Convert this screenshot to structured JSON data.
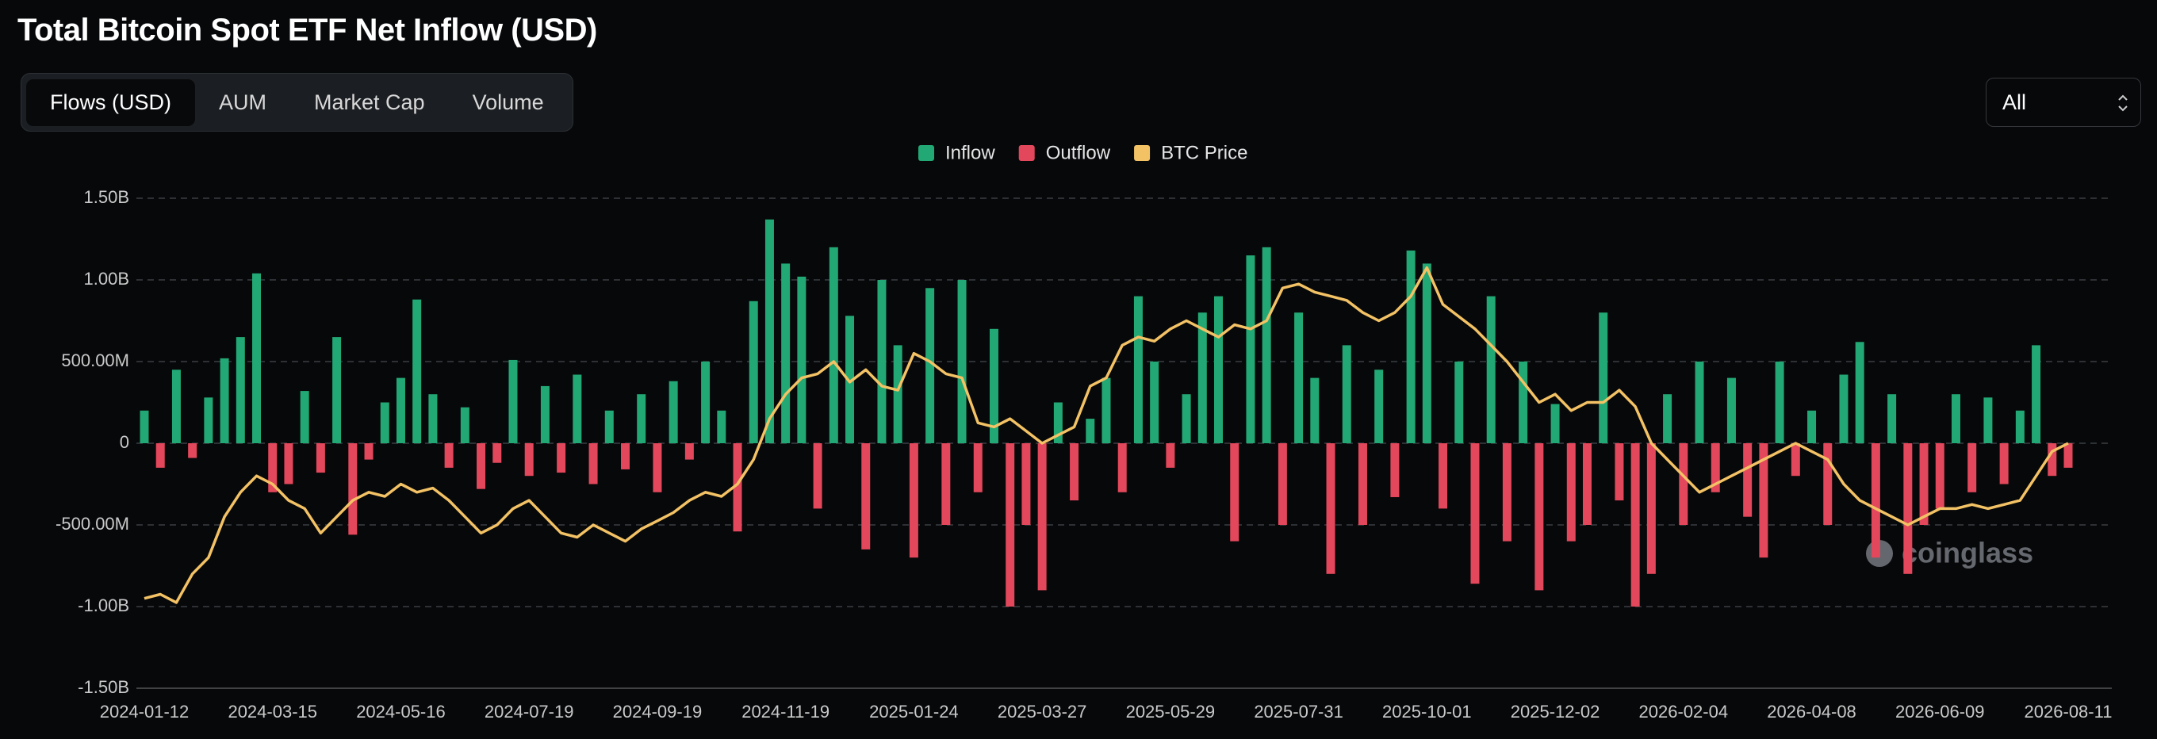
{
  "ui": {
    "tabs": [
      "Flows (USD)",
      "AUM",
      "Market Cap",
      "Volume"
    ],
    "active_tab": 0,
    "range_select": "All",
    "watermark": "coinglass"
  },
  "chart_data": {
    "type": "bar",
    "title": "Total Bitcoin Spot ETF Net Inflow (USD)",
    "categories": [
      "2024-01-12",
      null,
      null,
      null,
      null,
      null,
      null,
      null,
      "2024-03-15",
      null,
      null,
      null,
      null,
      null,
      null,
      null,
      "2024-05-16",
      null,
      null,
      null,
      null,
      null,
      null,
      null,
      "2024-07-19",
      null,
      null,
      null,
      null,
      null,
      null,
      null,
      "2024-09-19",
      null,
      null,
      null,
      null,
      null,
      null,
      null,
      "2024-11-19",
      null,
      null,
      null,
      null,
      null,
      null,
      null,
      "2025-01-24",
      null,
      null,
      null,
      null,
      null,
      null,
      null,
      "2025-03-27",
      null,
      null,
      null,
      null,
      null,
      null,
      null,
      "2025-05-29",
      null,
      null,
      null,
      null,
      null,
      null,
      null,
      "2025-07-31",
      null,
      null,
      null,
      null,
      null,
      null,
      null,
      "2025-10-01",
      null,
      null,
      null,
      null,
      null,
      null,
      null,
      "2025-12-02",
      null,
      null,
      null,
      null,
      null,
      null,
      null,
      "2026-02-04",
      null,
      null,
      null,
      null,
      null,
      null,
      null,
      "2026-04-08",
      null,
      null,
      null,
      null,
      null,
      null,
      null,
      "2026-06-09",
      null,
      null,
      null,
      null,
      null,
      null,
      null,
      "2026-08-11"
    ],
    "values": [
      200000000,
      -150000000,
      450000000,
      -90000000,
      280000000,
      520000000,
      650000000,
      1040000000,
      -300000000,
      -250000000,
      320000000,
      -180000000,
      650000000,
      -560000000,
      -100000000,
      250000000,
      400000000,
      880000000,
      300000000,
      -150000000,
      220000000,
      -280000000,
      -120000000,
      510000000,
      -200000000,
      350000000,
      -180000000,
      420000000,
      -250000000,
      200000000,
      -160000000,
      300000000,
      -300000000,
      380000000,
      -100000000,
      500000000,
      200000000,
      -540000000,
      870000000,
      1370000000,
      1100000000,
      1020000000,
      -400000000,
      1200000000,
      780000000,
      -650000000,
      1000000000,
      600000000,
      -700000000,
      950000000,
      -500000000,
      1000000000,
      -300000000,
      700000000,
      -1000000000,
      -500000000,
      -900000000,
      250000000,
      -350000000,
      150000000,
      400000000,
      -300000000,
      900000000,
      500000000,
      -150000000,
      300000000,
      800000000,
      900000000,
      -600000000,
      1150000000,
      1200000000,
      -500000000,
      800000000,
      400000000,
      -800000000,
      600000000,
      -500000000,
      450000000,
      -330000000,
      1180000000,
      1100000000,
      -400000000,
      500000000,
      -860000000,
      900000000,
      -600000000,
      500000000,
      -900000000,
      240000000,
      -600000000,
      -500000000,
      800000000,
      -350000000,
      -1000000000,
      -800000000,
      300000000,
      -500000000,
      500000000,
      -300000000,
      400000000,
      -450000000,
      -700000000,
      500000000,
      -200000000,
      200000000,
      -500000000,
      420000000,
      620000000,
      -700000000,
      300000000,
      -800000000,
      -500000000,
      -400000000,
      300000000,
      -300000000,
      280000000,
      -250000000,
      200000000,
      600000000,
      -200000000,
      -150000000
    ],
    "series": [
      {
        "name": "Inflow",
        "color": "#22a874"
      },
      {
        "name": "Outflow",
        "color": "#e2475b"
      },
      {
        "name": "BTC Price",
        "color": "#f3c265",
        "axis": "y2",
        "values": [
          42000,
          43000,
          41000,
          48000,
          52000,
          62000,
          68000,
          72000,
          70000,
          66000,
          64000,
          58000,
          62000,
          66000,
          68000,
          67000,
          70000,
          68000,
          69000,
          66000,
          62000,
          58000,
          60000,
          64000,
          66000,
          62000,
          58000,
          57000,
          60000,
          58000,
          56000,
          59000,
          61000,
          63000,
          66000,
          68000,
          67000,
          70000,
          76000,
          86000,
          92000,
          96000,
          97000,
          100000,
          95000,
          98000,
          94000,
          93000,
          102000,
          100000,
          97000,
          96000,
          85000,
          84000,
          86000,
          83000,
          80000,
          82000,
          84000,
          94000,
          96000,
          104000,
          106000,
          105000,
          108000,
          110000,
          108000,
          106000,
          109000,
          108000,
          110000,
          118000,
          119000,
          117000,
          116000,
          115000,
          112000,
          110000,
          112000,
          116000,
          123000,
          114000,
          111000,
          108000,
          104000,
          100000,
          95000,
          90000,
          92000,
          88000,
          90000,
          90000,
          93000,
          89000,
          80000,
          76000,
          72000,
          68000,
          70000,
          72000,
          74000,
          76000,
          78000,
          80000,
          78000,
          76000,
          70000,
          66000,
          64000,
          62000,
          60000,
          62000,
          64000,
          64000,
          65000,
          64000,
          65000,
          66000,
          72000,
          78000,
          80000
        ]
      }
    ],
    "ylim": [
      -1500000000,
      1500000000
    ],
    "yticks": [
      {
        "value": 1500000000,
        "label": "1.50B"
      },
      {
        "value": 1000000000,
        "label": "1.00B"
      },
      {
        "value": 500000000,
        "label": "500.00M"
      },
      0,
      {
        "value": -500000000,
        "label": "-500.00M"
      },
      {
        "value": -1000000000,
        "label": "-1.00B"
      },
      {
        "value": -1500000000,
        "label": "-1.50B"
      }
    ],
    "y2lim": [
      20000,
      140000
    ],
    "grid": true
  }
}
